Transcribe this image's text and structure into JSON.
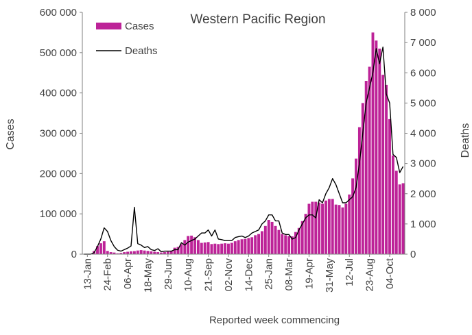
{
  "chart_data": {
    "type": "bar",
    "title": "Western Pacific Region",
    "xlabel": "Reported week commencing",
    "ylabel": "Cases",
    "y2label": "Deaths",
    "ylim": [
      0,
      600000
    ],
    "y2lim": [
      0,
      8000
    ],
    "yticks": [
      "0",
      "100 000",
      "200 000",
      "300 000",
      "400 000",
      "500 000",
      "600 000"
    ],
    "y2ticks": [
      "0",
      "1 000",
      "2 000",
      "3 000",
      "4 000",
      "5 000",
      "6 000",
      "7 000",
      "8 000"
    ],
    "xtick_labels": [
      {
        "week": 1,
        "label": "13-Jan"
      },
      {
        "week": 7,
        "label": "24-Feb"
      },
      {
        "week": 13,
        "label": "06-Apr"
      },
      {
        "week": 19,
        "label": "18-May"
      },
      {
        "week": 25,
        "label": "29-Jun"
      },
      {
        "week": 31,
        "label": "10-Aug"
      },
      {
        "week": 37,
        "label": "21-Sep"
      },
      {
        "week": 43,
        "label": "02-Nov"
      },
      {
        "week": 49,
        "label": "14-Dec"
      },
      {
        "week": 55,
        "label": "25-Jan"
      },
      {
        "week": 61,
        "label": "08-Mar"
      },
      {
        "week": 67,
        "label": "19-Apr"
      },
      {
        "week": 73,
        "label": "31-May"
      },
      {
        "week": 79,
        "label": "12-Jul"
      },
      {
        "week": 85,
        "label": "23-Aug"
      },
      {
        "week": 91,
        "label": "04-Oct"
      }
    ],
    "legend_position": "top-left",
    "colors": {
      "cases": "#bd2398",
      "deaths": "#000000",
      "axis": "#7f7f7f",
      "text": "#404040"
    },
    "series": [
      {
        "name": "Cases",
        "type": "bar",
        "axis": "left",
        "values": [
          0,
          0,
          0,
          8000,
          20000,
          27000,
          32000,
          8000,
          5000,
          4000,
          2000,
          3000,
          5000,
          6000,
          7000,
          7500,
          9000,
          10000,
          9000,
          8000,
          7000,
          6000,
          5000,
          4000,
          5000,
          6000,
          8000,
          16000,
          18000,
          25000,
          35000,
          45000,
          46000,
          42000,
          35000,
          28000,
          29000,
          30000,
          25000,
          26000,
          25000,
          26000,
          27000,
          26000,
          28000,
          32000,
          35000,
          37000,
          38000,
          40000,
          42000,
          47000,
          50000,
          57000,
          70000,
          85000,
          80000,
          70000,
          60000,
          50000,
          47000,
          45000,
          44000,
          55000,
          65000,
          82000,
          100000,
          125000,
          130000,
          130000,
          128000,
          125000,
          133000,
          137000,
          137000,
          123000,
          122000,
          116000,
          125000,
          148000,
          188000,
          237000,
          315000,
          375000,
          430000,
          465000,
          550000,
          530000,
          510000,
          445000,
          420000,
          335000,
          245000,
          207000,
          173000,
          176000
        ]
      },
      {
        "name": "Deaths",
        "type": "line",
        "axis": "right",
        "values": [
          0,
          0,
          0,
          50,
          250,
          500,
          870,
          750,
          450,
          250,
          130,
          100,
          150,
          200,
          270,
          1550,
          350,
          300,
          220,
          250,
          150,
          120,
          180,
          80,
          100,
          100,
          100,
          150,
          150,
          380,
          300,
          400,
          450,
          500,
          600,
          700,
          700,
          800,
          600,
          800,
          500,
          480,
          450,
          450,
          450,
          550,
          580,
          600,
          550,
          600,
          700,
          750,
          800,
          1000,
          1100,
          1300,
          1300,
          1100,
          1100,
          700,
          650,
          650,
          500,
          550,
          800,
          1000,
          1200,
          1300,
          1300,
          1200,
          1800,
          1700,
          2000,
          2200,
          2500,
          2300,
          2000,
          1700,
          1700,
          1800,
          1900,
          2200,
          3000,
          4000,
          5000,
          5500,
          6000,
          6800,
          6300,
          6850,
          5300,
          5000,
          3300,
          3200,
          2700,
          2900
        ]
      }
    ]
  }
}
